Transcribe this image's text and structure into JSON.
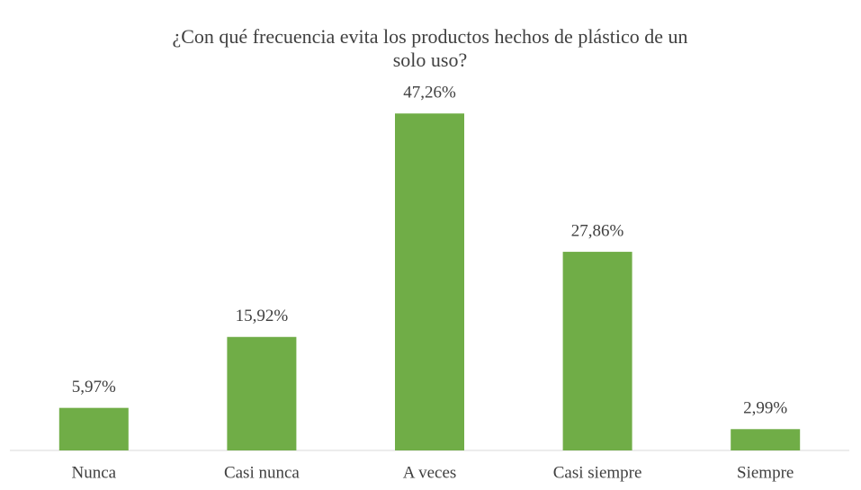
{
  "chart_data": {
    "type": "bar",
    "title": "¿Con qué frecuencia evita los productos hechos de plástico de un solo uso?",
    "categories": [
      "Nunca",
      "Casi nunca",
      "A veces",
      "Casi siempre",
      "Siempre"
    ],
    "values": [
      5.97,
      15.92,
      47.26,
      27.86,
      2.99
    ],
    "value_labels": [
      "5,97%",
      "15,92%",
      "47,26%",
      "27,86%",
      "2,99%"
    ],
    "color": "#70ad47"
  }
}
